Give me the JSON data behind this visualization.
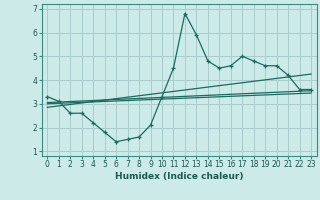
{
  "title": "",
  "xlabel": "Humidex (Indice chaleur)",
  "bg_color": "#cceae8",
  "grid_color": "#aacccc",
  "line_color": "#1a6b60",
  "xlim": [
    -0.5,
    23.5
  ],
  "ylim": [
    0.8,
    7.2
  ],
  "yticks": [
    1,
    2,
    3,
    4,
    5,
    6,
    7
  ],
  "xticks": [
    0,
    1,
    2,
    3,
    4,
    5,
    6,
    7,
    8,
    9,
    10,
    11,
    12,
    13,
    14,
    15,
    16,
    17,
    18,
    19,
    20,
    21,
    22,
    23
  ],
  "main_x": [
    0,
    1,
    2,
    3,
    4,
    5,
    6,
    7,
    8,
    9,
    10,
    11,
    12,
    13,
    14,
    15,
    16,
    17,
    18,
    19,
    20,
    21,
    22,
    23
  ],
  "main_y": [
    3.3,
    3.1,
    2.6,
    2.6,
    2.2,
    1.8,
    1.4,
    1.5,
    1.6,
    2.1,
    3.3,
    4.5,
    6.8,
    5.9,
    4.8,
    4.5,
    4.6,
    5.0,
    4.8,
    4.6,
    4.6,
    4.2,
    3.6,
    3.6
  ],
  "reg_line1_x": [
    0,
    23
  ],
  "reg_line1_y": [
    3.05,
    3.55
  ],
  "reg_line2_x": [
    0,
    23
  ],
  "reg_line2_y": [
    2.85,
    4.25
  ],
  "reg_line3_x": [
    0,
    23
  ],
  "reg_line3_y": [
    3.0,
    3.45
  ],
  "xlabel_fontsize": 6.5,
  "tick_fontsize": 5.5,
  "spine_color": "#3a8a80"
}
